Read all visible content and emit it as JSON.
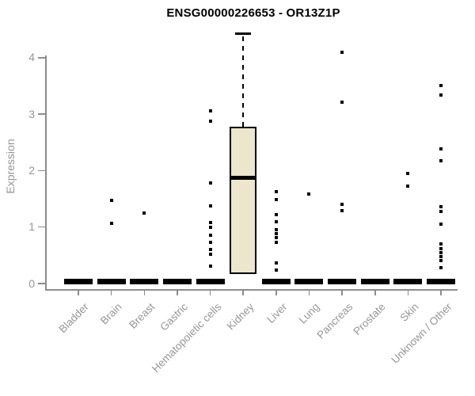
{
  "header": {
    "title": "ENSG00000226653 - OR13Z1P"
  },
  "chart_data": {
    "type": "boxplot",
    "title": "ENSG00000226653 - OR13Z1P",
    "xlabel": "",
    "ylabel": "Expression",
    "ylim": [
      0,
      4.5
    ],
    "yticks": [
      0,
      1,
      2,
      3,
      4
    ],
    "grid": false,
    "legend": null,
    "categories": [
      "Bladder",
      "Brain",
      "Breast",
      "Gastric",
      "Hematopoietic cells",
      "Kidney",
      "Liver",
      "Lung",
      "Pancreas",
      "Prostate",
      "Skin",
      "Unknown / Other"
    ],
    "boxes": [
      {
        "category": "Bladder",
        "collapsed": true,
        "median": 0,
        "q1": 0,
        "q3": 0,
        "points": []
      },
      {
        "category": "Brain",
        "collapsed": true,
        "median": 0,
        "q1": 0,
        "q3": 0,
        "points": [
          1.47,
          1.07
        ]
      },
      {
        "category": "Breast",
        "collapsed": true,
        "median": 0,
        "q1": 0,
        "q3": 0,
        "points": [
          1.25
        ]
      },
      {
        "category": "Gastric",
        "collapsed": true,
        "median": 0,
        "q1": 0,
        "q3": 0,
        "points": []
      },
      {
        "category": "Hematopoietic cells",
        "collapsed": true,
        "median": 0,
        "q1": 0,
        "q3": 0,
        "points": [
          3.06,
          2.87,
          1.78,
          1.37,
          1.08,
          1.0,
          0.85,
          0.73,
          0.6,
          0.52,
          0.31
        ]
      },
      {
        "category": "Kidney",
        "collapsed": false,
        "median": 1.87,
        "q1": 0.17,
        "q3": 2.77,
        "whisker_high": 4.42,
        "whisker_low": null,
        "points": []
      },
      {
        "category": "Liver",
        "collapsed": true,
        "median": 0,
        "q1": 0,
        "q3": 0,
        "points": [
          1.63,
          1.48,
          1.22,
          1.1,
          0.95,
          0.88,
          0.81,
          0.73,
          0.37,
          0.24
        ]
      },
      {
        "category": "Lung",
        "collapsed": true,
        "median": 0,
        "q1": 0,
        "q3": 0,
        "points": [
          1.58
        ]
      },
      {
        "category": "Pancreas",
        "collapsed": true,
        "median": 0,
        "q1": 0,
        "q3": 0,
        "points": [
          4.1,
          3.21,
          1.4,
          1.29
        ]
      },
      {
        "category": "Prostate",
        "collapsed": true,
        "median": 0,
        "q1": 0,
        "q3": 0,
        "points": []
      },
      {
        "category": "Skin",
        "collapsed": true,
        "median": 0,
        "q1": 0,
        "q3": 0,
        "points": [
          1.95,
          1.72
        ]
      },
      {
        "category": "Unknown / Other",
        "collapsed": true,
        "median": 0,
        "q1": 0,
        "q3": 0,
        "points": [
          3.51,
          3.34,
          2.39,
          2.18,
          1.36,
          1.28,
          1.05,
          0.7,
          0.62,
          0.55,
          0.47,
          0.4,
          0.28
        ]
      }
    ],
    "colors": {
      "box_fill": "#ece6cd",
      "box_border": "#000000",
      "point": "#000000",
      "axis": "#8c8c8c",
      "tick_label": "#969696",
      "title": "#000000",
      "background": "#ffffff"
    }
  }
}
